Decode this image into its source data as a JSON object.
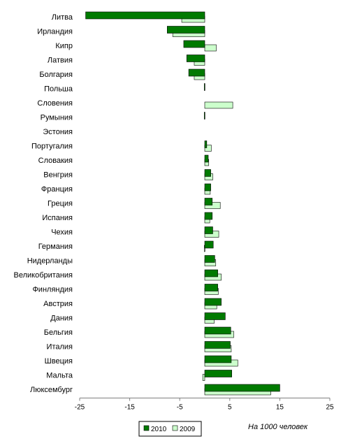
{
  "colors": {
    "series_2010": "#007a00",
    "series_2009": "#ccffcc",
    "bar_stroke": "#000000",
    "axis": "#7f7f7f"
  },
  "chart_data": {
    "type": "bar",
    "orientation": "horizontal",
    "categories": [
      "Литва",
      "Ирландия",
      "Кипр",
      "Латвия",
      "Болгария",
      "Польша",
      "Словения",
      "Румыния",
      "Эстония",
      "Португалия",
      "Словакия",
      "Венгрия",
      "Франция",
      "Греция",
      "Испания",
      "Чехия",
      "Германия",
      "Нидерланды",
      "Великобритания",
      "Финляндия",
      "Австрия",
      "Дания",
      "Бельгия",
      "Италия",
      "Швеция",
      "Мальта",
      "Люксембург"
    ],
    "series": [
      {
        "name": "2010",
        "values": [
          -23.8,
          -7.5,
          -4.2,
          -3.6,
          -3.2,
          -0.1,
          0,
          -0.1,
          0,
          0.4,
          0.7,
          1.2,
          1.2,
          1.5,
          1.5,
          1.6,
          1.7,
          2.0,
          2.6,
          2.6,
          3.3,
          4.1,
          5.2,
          5.1,
          5.3,
          5.4,
          15.0
        ]
      },
      {
        "name": "2009",
        "values": [
          -4.6,
          -6.4,
          2.3,
          -2.1,
          -2.1,
          0,
          5.6,
          0,
          0,
          1.3,
          0.8,
          1.6,
          1.1,
          3.1,
          1.0,
          2.8,
          -0.1,
          2.2,
          3.3,
          2.7,
          2.4,
          1.9,
          5.8,
          5.3,
          6.6,
          -0.4,
          13.2
        ]
      }
    ],
    "xlim": [
      -25,
      25
    ],
    "xticks": [
      "-25",
      "-15",
      "-5",
      "5",
      "15",
      "25"
    ],
    "legend_position": "bottom",
    "unit_label": "На 1000 человек"
  }
}
